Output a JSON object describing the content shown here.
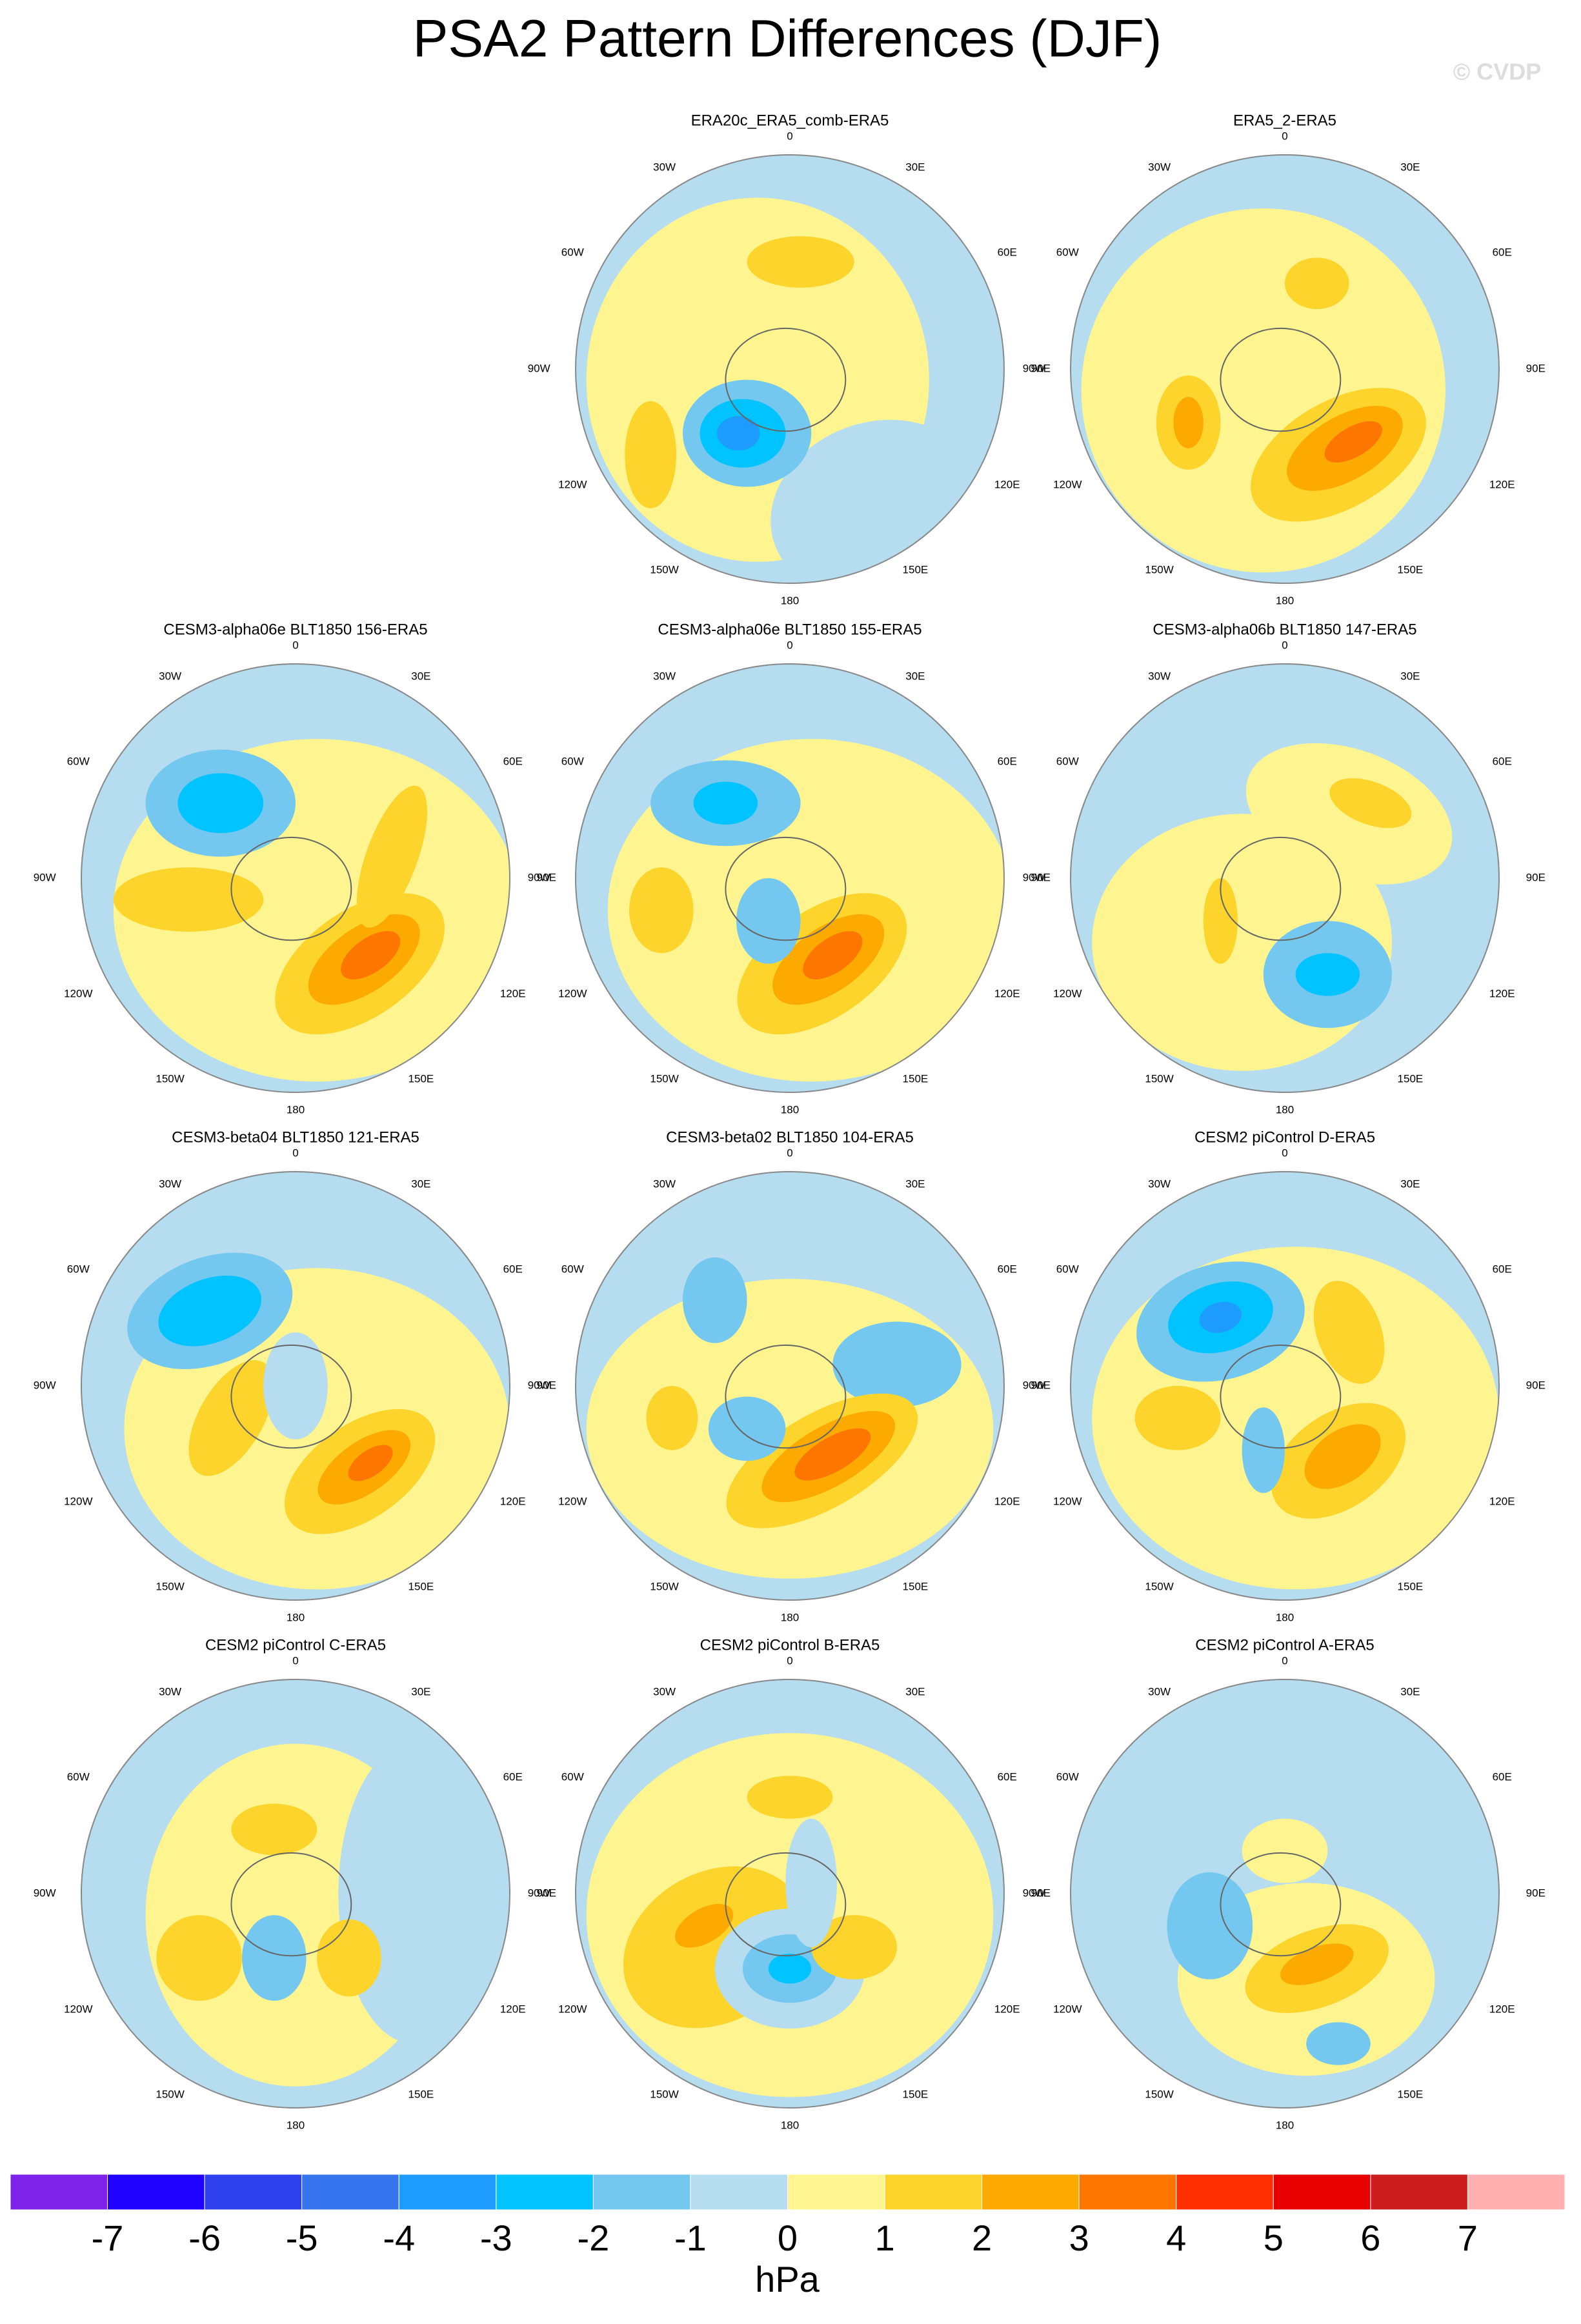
{
  "title": "PSA2 Pattern Differences (DJF)",
  "watermark": "© CVDP",
  "longitude_labels": [
    "0",
    "30E",
    "60E",
    "90E",
    "120E",
    "150E",
    "180",
    "150W",
    "120W",
    "90W",
    "60W",
    "30W"
  ],
  "panels": [
    {
      "title": "ERA20c_ERA5_comb-ERA5"
    },
    {
      "title": "ERA5_2-ERA5"
    },
    {
      "title": "CESM3-alpha06e BLT1850 156-ERA5"
    },
    {
      "title": "CESM3-alpha06e BLT1850 155-ERA5"
    },
    {
      "title": "CESM3-alpha06b BLT1850 147-ERA5"
    },
    {
      "title": "CESM3-beta04 BLT1850 121-ERA5"
    },
    {
      "title": "CESM3-beta02 BLT1850 104-ERA5"
    },
    {
      "title": "CESM2 piControl D-ERA5"
    },
    {
      "title": "CESM2 piControl C-ERA5"
    },
    {
      "title": "CESM2 piControl B-ERA5"
    },
    {
      "title": "CESM2 piControl A-ERA5"
    }
  ],
  "colorbar": {
    "colors": [
      "#7d22e8",
      "#2000ff",
      "#2f40ee",
      "#3674ee",
      "#1e9bff",
      "#00c3ff",
      "#74c8f0",
      "#b6dcf0",
      "#fff590",
      "#fcd42c",
      "#fdaa00",
      "#fd7700",
      "#ff2e00",
      "#e60000",
      "#cc1e1e",
      "#ffb0b0"
    ],
    "labels": [
      -7,
      -6,
      -5,
      -4,
      -3,
      -2,
      -1,
      0,
      1,
      2,
      3,
      4,
      5,
      6,
      7
    ],
    "unit": "hPa"
  }
}
